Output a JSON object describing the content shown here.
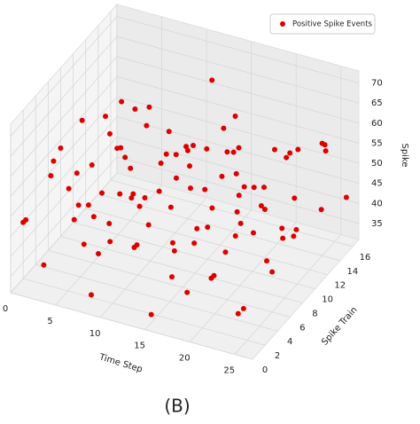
{
  "chart_data": {
    "type": "scatter3d",
    "xlabel": "Time Step",
    "ylabel": "Spike Train",
    "zlabel": "Spike",
    "xlim": [
      0,
      27
    ],
    "ylim": [
      0,
      17
    ],
    "zlim": [
      31,
      73
    ],
    "xticks": [
      0,
      5,
      10,
      15,
      20,
      25
    ],
    "yticks": [
      0,
      2,
      4,
      6,
      8,
      10,
      12,
      14,
      16
    ],
    "zticks": [
      35,
      40,
      45,
      50,
      55,
      60,
      65,
      70
    ],
    "grid": true,
    "legend_position": "upper right",
    "series": [
      {
        "name": "Positive Spike Events",
        "color": "#dd0000",
        "x": [
          0,
          1,
          2,
          3,
          4,
          5,
          6,
          7,
          8,
          9,
          10,
          11,
          12,
          13,
          14,
          15,
          16,
          17,
          18,
          19,
          20,
          21,
          22,
          23,
          24,
          25,
          26,
          27,
          2,
          4,
          6,
          8,
          10,
          12,
          14,
          16,
          18,
          20,
          22,
          24,
          1,
          3,
          5,
          7,
          9,
          11,
          13,
          15,
          17,
          19,
          21,
          23,
          25,
          27,
          0,
          2,
          4,
          6,
          8,
          10,
          12,
          14,
          16,
          18,
          20,
          22,
          24,
          26,
          1,
          3,
          5,
          7,
          9,
          11,
          13,
          15,
          17,
          19,
          21,
          23,
          25,
          27,
          0,
          6,
          12,
          18,
          24,
          9,
          15,
          21,
          3,
          8,
          13,
          17,
          22,
          26,
          11,
          5,
          19,
          14
        ],
        "y": [
          2,
          5,
          8,
          1,
          12,
          3,
          9,
          14,
          6,
          0,
          11,
          4,
          15,
          7,
          2,
          10,
          13,
          5,
          8,
          1,
          16,
          6,
          12,
          3,
          9,
          14,
          0,
          7,
          13,
          6,
          2,
          15,
          5,
          9,
          14,
          3,
          11,
          7,
          1,
          16,
          10,
          14,
          8,
          4,
          12,
          0,
          16,
          5,
          10,
          15,
          2,
          13,
          6,
          11,
          8,
          4,
          16,
          11,
          1,
          14,
          3,
          8,
          16,
          4,
          12,
          9,
          2,
          13,
          1,
          9,
          15,
          7,
          3,
          13,
          2,
          15,
          7,
          9,
          14,
          8,
          3,
          15,
          13,
          6,
          12,
          0,
          11,
          7,
          1,
          10,
          5,
          10,
          10,
          13,
          5,
          8,
          8,
          12,
          5,
          11
        ],
        "z": [
          45,
          52,
          40,
          38,
          60,
          47,
          55,
          43,
          50,
          36,
          58,
          42,
          65,
          48,
          53,
          39,
          62,
          45,
          57,
          41,
          50,
          63,
          37,
          54,
          46,
          59,
          43,
          51,
          49,
          35,
          61,
          44,
          52,
          33,
          56,
          48,
          40,
          66,
          47,
          53,
          57,
          42,
          64,
          38,
          50,
          55,
          46,
          60,
          34,
          52,
          44,
          58,
          41,
          49,
          53,
          58,
          47,
          40,
          56,
          48,
          45,
          62,
          39,
          51,
          43,
          55,
          37,
          61,
          48,
          36,
          54,
          59,
          44,
          41,
          57,
          50,
          65,
          47,
          53,
          39,
          56,
          45,
          40,
          49,
          54,
          46,
          50,
          70,
          33,
          48,
          50,
          42,
          53,
          45,
          60,
          47,
          49,
          44,
          55,
          46
        ]
      }
    ]
  },
  "caption": "(B)"
}
